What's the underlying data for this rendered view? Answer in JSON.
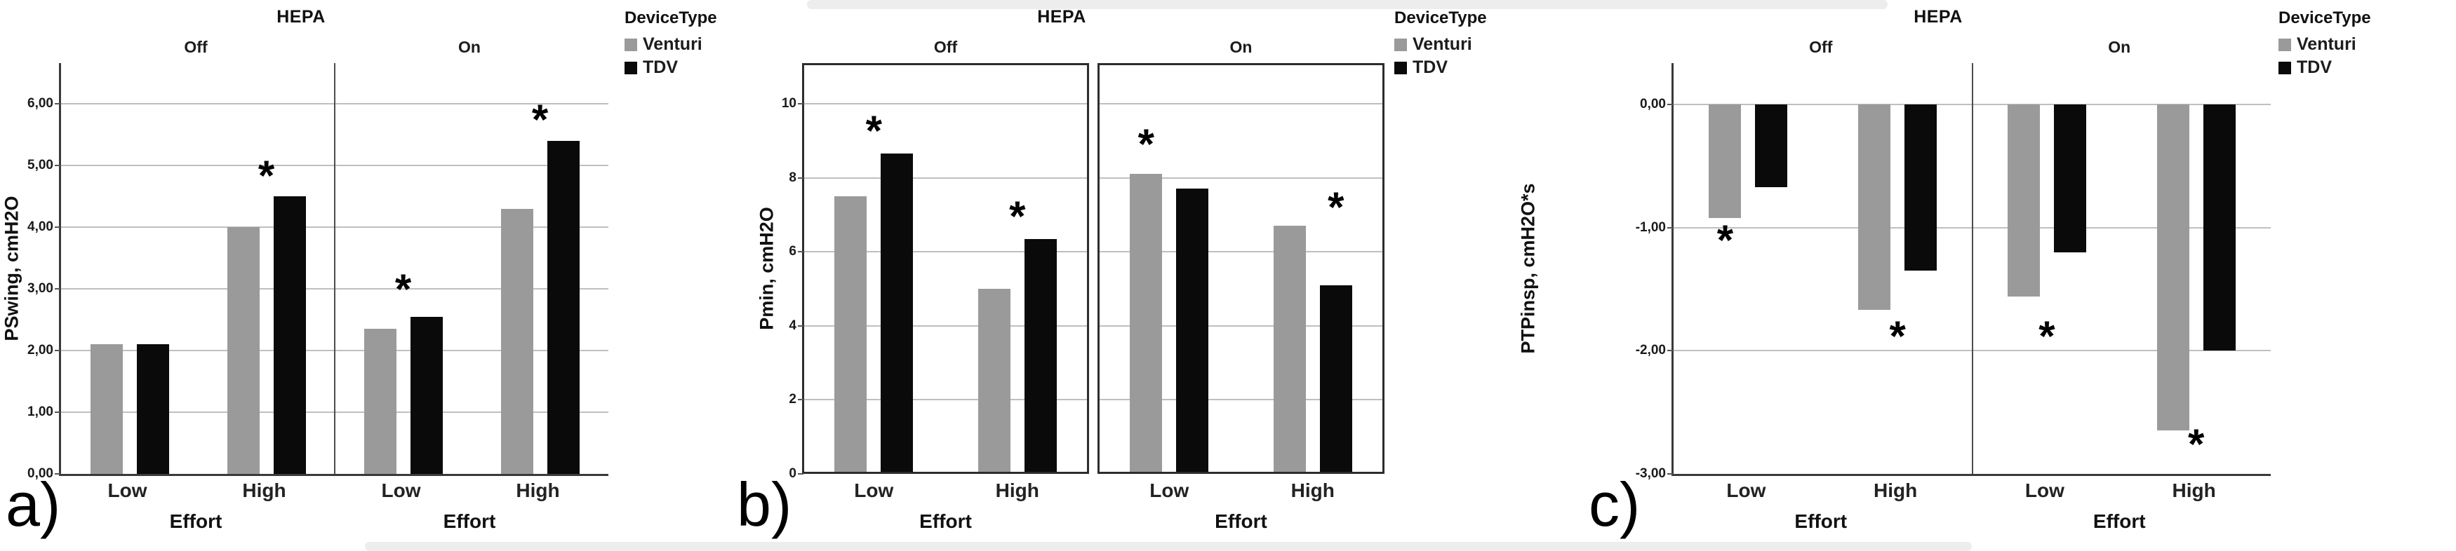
{
  "figure": {
    "letters": [
      "a)",
      "b)",
      "c)"
    ],
    "star_symbol": "*",
    "legend": {
      "title": "DeviceType",
      "items": [
        {
          "label": "Venturi",
          "color": "#9a9a9a"
        },
        {
          "label": "TDV",
          "color": "#0a0a0a"
        }
      ]
    }
  },
  "chart_data": [
    {
      "type": "bar",
      "letter": "a)",
      "title": "HEPA",
      "ylabel": "PSwing, cmH2O",
      "xlabel": "Effort",
      "categories": [
        "Low",
        "High"
      ],
      "series_names": [
        "Venturi",
        "TDV"
      ],
      "ylim_axis": [
        0,
        6.66
      ],
      "gridlines": [
        1,
        2,
        3,
        4,
        5,
        6
      ],
      "yticks": [
        {
          "v": 6,
          "label": "6,00"
        },
        {
          "v": 5,
          "label": "5,00"
        },
        {
          "v": 4,
          "label": "4,00"
        },
        {
          "v": 3,
          "label": "3,00"
        },
        {
          "v": 2,
          "label": "2,00"
        },
        {
          "v": 1,
          "label": "1,00"
        },
        {
          "v": 0,
          "label": "0,00"
        }
      ],
      "panels": [
        {
          "label": "Off",
          "groups": [
            {
              "category": "Low",
              "venturi": 2.1,
              "tdv": 2.1,
              "star": null
            },
            {
              "category": "High",
              "venturi": 4.0,
              "tdv": 4.5,
              "star": {
                "pos": "between",
                "v": 4.8
              }
            }
          ]
        },
        {
          "label": "On",
          "groups": [
            {
              "category": "Low",
              "venturi": 2.35,
              "tdv": 2.55,
              "star": {
                "pos": "between",
                "v": 2.95
              }
            },
            {
              "category": "High",
              "venturi": 4.3,
              "tdv": 5.4,
              "star": {
                "pos": "between",
                "v": 5.7
              }
            }
          ]
        }
      ]
    },
    {
      "type": "bar",
      "letter": "b)",
      "title": "HEPA",
      "ylabel": "Pmin, cmH2O",
      "xlabel": "Effort",
      "categories": [
        "Low",
        "High"
      ],
      "series_names": [
        "Venturi",
        "TDV"
      ],
      "ylim_axis": [
        0,
        11.1
      ],
      "gridlines": [
        2,
        4,
        6,
        8,
        10
      ],
      "yticks": [
        {
          "v": 10,
          "label": "10"
        },
        {
          "v": 8,
          "label": "8"
        },
        {
          "v": 6,
          "label": "6"
        },
        {
          "v": 4,
          "label": "4"
        },
        {
          "v": 2,
          "label": "2"
        },
        {
          "v": 0,
          "label": "0"
        }
      ],
      "panels": [
        {
          "label": "Off",
          "groups": [
            {
              "category": "Low",
              "venturi": 7.5,
              "tdv": 8.65,
              "star": {
                "pos": "between",
                "v": 9.2
              }
            },
            {
              "category": "High",
              "venturi": 5.0,
              "tdv": 6.35,
              "star": {
                "pos": "between",
                "v": 6.9
              }
            }
          ]
        },
        {
          "label": "On",
          "groups": [
            {
              "category": "Low",
              "venturi": 8.1,
              "tdv": 7.7,
              "star": {
                "pos": "venturi",
                "v": 8.85
              }
            },
            {
              "category": "High",
              "venturi": 6.7,
              "tdv": 5.1,
              "star": {
                "pos": "tdv",
                "v": 7.15
              }
            }
          ]
        }
      ]
    },
    {
      "type": "bar",
      "letter": "c)",
      "title": "HEPA",
      "ylabel": "PTPinsp, cmH2O*s",
      "xlabel": "Effort",
      "categories": [
        "Low",
        "High"
      ],
      "series_names": [
        "Venturi",
        "TDV"
      ],
      "ylim_axis": [
        -3,
        0.335
      ],
      "gridlines": [
        0,
        -1,
        -2
      ],
      "yticks": [
        {
          "v": 0,
          "label": "0,00"
        },
        {
          "v": -1,
          "label": "-1,00"
        },
        {
          "v": -2,
          "label": "-2,00"
        },
        {
          "v": -3,
          "label": "-3,00"
        }
      ],
      "panels": [
        {
          "label": "Off",
          "groups": [
            {
              "category": "Low",
              "venturi": -0.92,
              "tdv": -0.67,
              "star": {
                "pos": "venturi",
                "v": -1.12
              }
            },
            {
              "category": "High",
              "venturi": -1.67,
              "tdv": -1.35,
              "star": {
                "pos": "between",
                "v": -1.9
              }
            }
          ]
        },
        {
          "label": "On",
          "groups": [
            {
              "category": "Low",
              "venturi": -1.56,
              "tdv": -1.2,
              "star": {
                "pos": "between",
                "v": -1.9
              }
            },
            {
              "category": "High",
              "venturi": -2.65,
              "tdv": -2.0,
              "star": {
                "pos": "between",
                "v": -2.78
              }
            }
          ]
        }
      ]
    }
  ]
}
